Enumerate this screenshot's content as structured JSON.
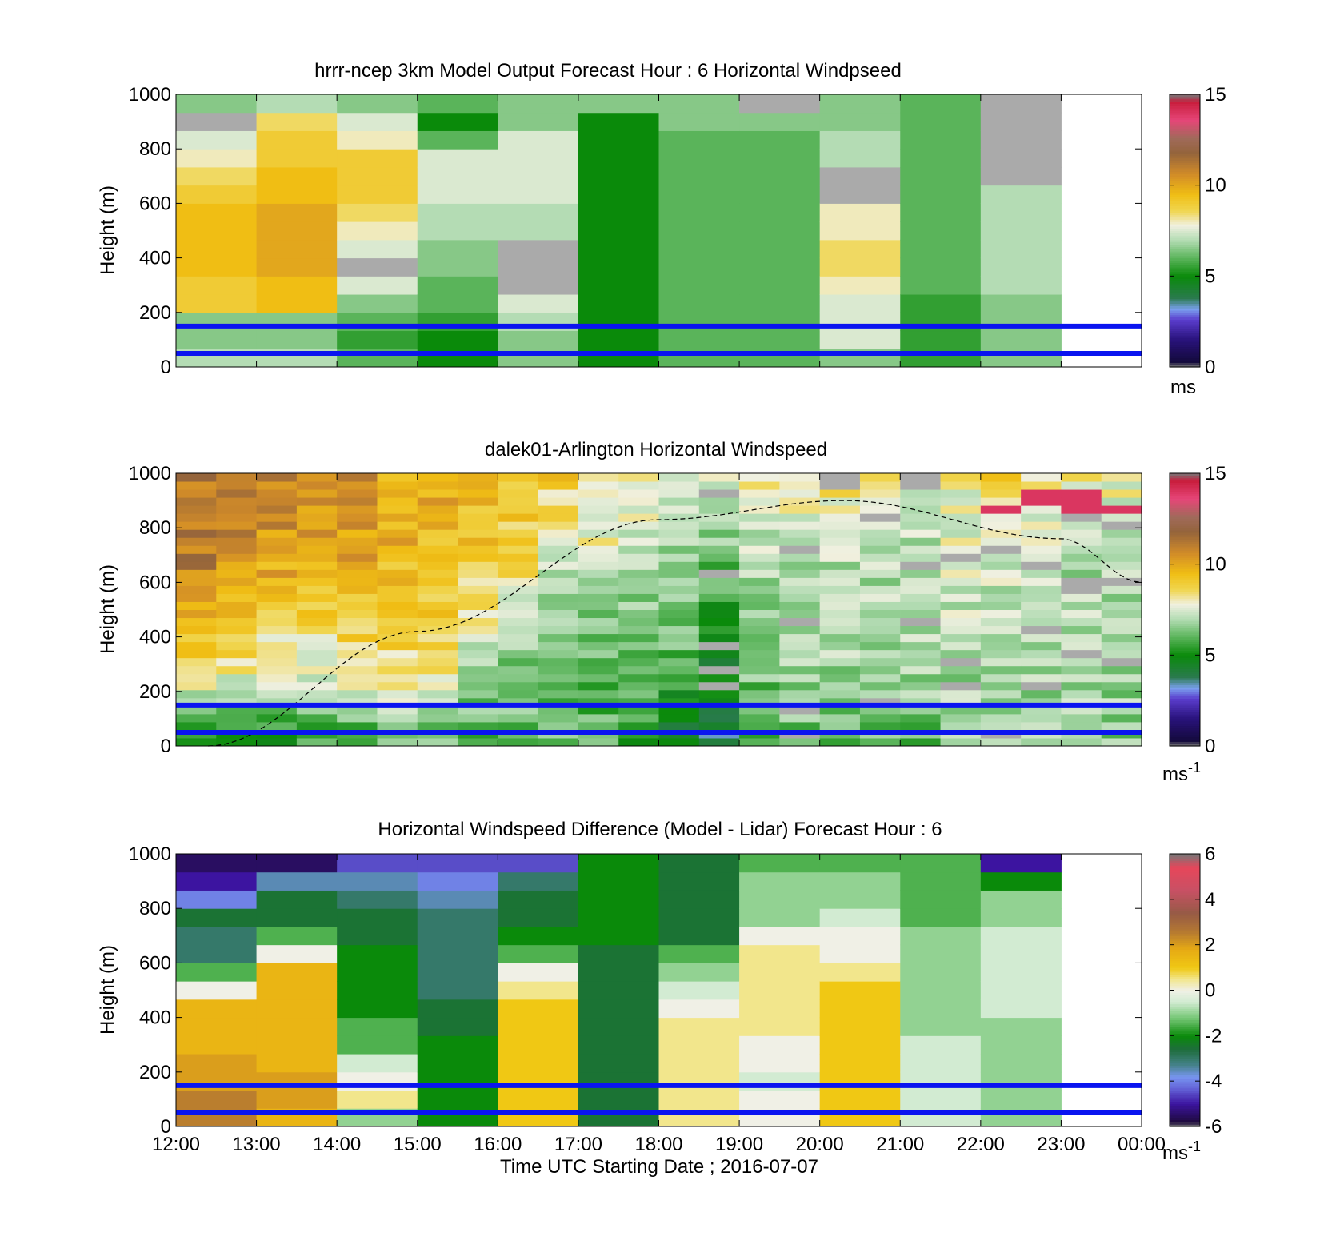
{
  "chart_data": [
    {
      "type": "heatmap",
      "title": "hrrr-ncep 3km Model Output   Forecast Hour : 6 Horizontal Windpseed",
      "ylabel": "Height (m)",
      "xlabel": "",
      "ylim": [
        0,
        1000
      ],
      "xlim": [
        "12:00",
        "00:00"
      ],
      "y_ticks": [
        "0",
        "200",
        "400",
        "600",
        "800",
        "1000"
      ],
      "colorbar": {
        "min": 0,
        "max": 15,
        "ticks": [
          "0",
          "5",
          "10",
          "15"
        ],
        "unit": "ms",
        "palette": "windspeed"
      },
      "reference_lines_m": [
        50,
        150
      ],
      "hours": [
        12,
        13,
        14,
        15,
        16,
        17,
        18,
        19,
        20,
        21,
        22
      ],
      "values_by_hour": [
        [
          7,
          6.5,
          6.5,
          9,
          9,
          9.5,
          9.5,
          9.5,
          9.5,
          9,
          8.5,
          8,
          7.5,
          0,
          6.5
        ],
        [
          7,
          6.5,
          6.5,
          9.5,
          9.5,
          10,
          10,
          10,
          10,
          9.5,
          9.5,
          9,
          9,
          8.5,
          7
        ],
        [
          6,
          5.5,
          6,
          6.5,
          7.5,
          0,
          7.5,
          8,
          8.5,
          9,
          9,
          9,
          8,
          7.5,
          6.5
        ],
        [
          5,
          5,
          5.5,
          6,
          6,
          6.5,
          6.5,
          7,
          7,
          7.5,
          7.5,
          7.5,
          6,
          5,
          6
        ],
        [
          6.5,
          6.5,
          7,
          7.5,
          0,
          0,
          0,
          7,
          7,
          7.5,
          7.5,
          7.5,
          7.5,
          6.5,
          6.5
        ],
        [
          5,
          5,
          5,
          5,
          5,
          5,
          5,
          5,
          5,
          5,
          5,
          5,
          5,
          5,
          6.5
        ],
        [
          6,
          6,
          6,
          6,
          6,
          6,
          6,
          6,
          6,
          6,
          6,
          6,
          6,
          6.5,
          6.5
        ],
        [
          6,
          6,
          6,
          6,
          6,
          6,
          6,
          6,
          6,
          6,
          6,
          6,
          6,
          6.5,
          0
        ],
        [
          6.5,
          7.5,
          7.5,
          7.5,
          8,
          8.5,
          8.5,
          8,
          8,
          0,
          0,
          7,
          7,
          6.5,
          6.5
        ],
        [
          5.5,
          5.5,
          5.5,
          5.5,
          6,
          6,
          6,
          6,
          6,
          6,
          6,
          6,
          6,
          6,
          6
        ],
        [
          6.5,
          6.5,
          6.5,
          6.5,
          7,
          7,
          7,
          7,
          7,
          7,
          0,
          0,
          0,
          0,
          0
        ]
      ]
    },
    {
      "type": "heatmap",
      "title": "dalek01-Arlington  Horizontal Windspeed",
      "ylabel": "Height (m)",
      "xlabel": "",
      "ylim": [
        0,
        1000
      ],
      "xlim": [
        "12:00",
        "00:00"
      ],
      "y_ticks": [
        "0",
        "200",
        "400",
        "600",
        "800",
        "1000"
      ],
      "colorbar": {
        "min": 0,
        "max": 15,
        "ticks": [
          "0",
          "5",
          "10",
          "15"
        ],
        "unit": "ms",
        "unit_exponent": "-1",
        "palette": "windspeed"
      },
      "reference_lines_m": [
        50,
        150
      ],
      "overlay_curve": {
        "style": "dashed",
        "description_points": [
          [
            12.4,
            0
          ],
          [
            15.0,
            420
          ],
          [
            18.0,
            830
          ],
          [
            20.3,
            900
          ],
          [
            23.0,
            760
          ],
          [
            24.0,
            600
          ]
        ]
      },
      "hour_columns": [
        [
          12.0,
          5,
          9,
          11,
          11
        ],
        [
          12.5,
          5,
          8.5,
          10.5,
          11
        ],
        [
          13.0,
          5,
          8,
          10,
          11
        ],
        [
          13.5,
          5.5,
          8,
          10,
          11
        ],
        [
          14.0,
          5.5,
          8.5,
          10,
          10.5
        ],
        [
          14.5,
          6,
          8.5,
          9.5,
          10
        ],
        [
          15.0,
          6,
          8.5,
          9.5,
          10
        ],
        [
          15.5,
          6,
          7,
          9,
          9.5
        ],
        [
          16.0,
          6,
          6.5,
          8.5,
          9.5
        ],
        [
          16.5,
          6,
          6.5,
          7.5,
          9
        ],
        [
          17.0,
          6,
          6,
          7.5,
          8.5
        ],
        [
          17.5,
          5.5,
          6,
          7,
          8.5
        ],
        [
          18.0,
          4.5,
          6,
          6.5,
          8
        ],
        [
          18.5,
          4,
          5,
          6,
          7.5
        ],
        [
          19.0,
          5.5,
          6.5,
          7,
          8
        ],
        [
          19.5,
          6,
          7,
          7,
          8
        ],
        [
          20.0,
          6,
          7,
          7,
          8.5
        ],
        [
          20.5,
          6,
          7,
          7,
          8.5
        ],
        [
          21.0,
          6,
          7,
          7,
          8
        ],
        [
          21.5,
          6.5,
          7,
          7.5,
          8
        ],
        [
          22.0,
          6.5,
          7,
          7.5,
          9
        ],
        [
          22.5,
          6.5,
          7,
          7,
          8.5
        ],
        [
          23.0,
          6.5,
          7,
          7,
          8
        ],
        [
          23.5,
          6.5,
          7,
          7,
          8
        ]
      ],
      "column_value_order": [
        "hour",
        "low_level",
        "mid_level",
        "upper_level",
        "top"
      ]
    },
    {
      "type": "heatmap",
      "title": "Horizontal Windspeed Difference (Model - Lidar) Forecast Hour : 6",
      "ylabel": "Height (m)",
      "xlabel": "Time UTC  Starting Date ; 2016-07-07",
      "ylim": [
        0,
        1000
      ],
      "xlim": [
        "12:00",
        "00:00"
      ],
      "x_ticks": [
        "12:00",
        "13:00",
        "14:00",
        "15:00",
        "16:00",
        "17:00",
        "18:00",
        "19:00",
        "20:00",
        "21:00",
        "22:00",
        "23:00",
        "00:00"
      ],
      "y_ticks": [
        "0",
        "200",
        "400",
        "600",
        "800",
        "1000"
      ],
      "colorbar": {
        "min": -6,
        "max": 6,
        "ticks": [
          "-6",
          "-4",
          "-2",
          "0",
          "2",
          "4",
          "6"
        ],
        "unit": "ms",
        "unit_exponent": "-1",
        "palette": "difference"
      },
      "reference_lines_m": [
        50,
        150
      ],
      "hours": [
        12,
        13,
        14,
        15,
        16,
        17,
        18,
        19,
        20,
        21,
        22
      ],
      "values_by_hour": [
        [
          2.5,
          2.5,
          2,
          2,
          1.5,
          1.5,
          1.5,
          0,
          -1.5,
          -3,
          -3,
          -2.5,
          -4,
          -5,
          -5.5
        ],
        [
          1.5,
          2,
          2,
          1.5,
          1.5,
          1.5,
          1.5,
          1.5,
          1.5,
          0,
          -1.5,
          -2.5,
          -2.5,
          -3.5,
          -5.5
        ],
        [
          -1,
          0.5,
          0,
          -0.5,
          -1.5,
          -1.5,
          -2,
          -2,
          -2,
          -2,
          -2.5,
          -2.5,
          -3,
          -3.5,
          -4.5
        ],
        [
          -2,
          -2,
          -2,
          -2,
          -2,
          -2.5,
          -2.5,
          -3,
          -3,
          -3,
          -3,
          -3,
          -3.5,
          -4,
          -4.5
        ],
        [
          1,
          1,
          1,
          1,
          1,
          1,
          1,
          0.5,
          0,
          -1.5,
          -2,
          -2.5,
          -2.5,
          -3,
          -4.5
        ],
        [
          -2.5,
          -2.5,
          -2.5,
          -2.5,
          -2.5,
          -2.5,
          -2.5,
          -2.5,
          -2.5,
          -2.5,
          -2,
          -2,
          -2,
          -2,
          -2
        ],
        [
          0.5,
          0.5,
          0.5,
          0.5,
          0.5,
          0.5,
          0,
          -0.5,
          -1,
          -1.5,
          -2.5,
          -2.5,
          -2.5,
          -2.5,
          -2.5
        ],
        [
          0,
          0,
          -0.5,
          0,
          0,
          0.5,
          0.5,
          0.5,
          0.5,
          0.5,
          0,
          -1,
          -1,
          -1,
          -1.5
        ],
        [
          1,
          1,
          1,
          1,
          1,
          1,
          1,
          1,
          0.5,
          0,
          0,
          -0.5,
          -1,
          -1,
          -1.5
        ],
        [
          -0.5,
          -0.5,
          -0.5,
          -0.5,
          -0.5,
          -1,
          -1,
          -1,
          -1,
          -1,
          -1,
          -1.5,
          -1.5,
          -1.5,
          -1.5
        ],
        [
          -1,
          -1,
          -1,
          -1,
          -1,
          -1,
          -0.5,
          -0.5,
          -0.5,
          -0.5,
          -0.5,
          -1,
          -1,
          -2,
          -5
        ]
      ]
    }
  ],
  "colors": {
    "reference_line": "#0a14f0",
    "missing": "#aaaaaa",
    "curve": "#000000"
  }
}
